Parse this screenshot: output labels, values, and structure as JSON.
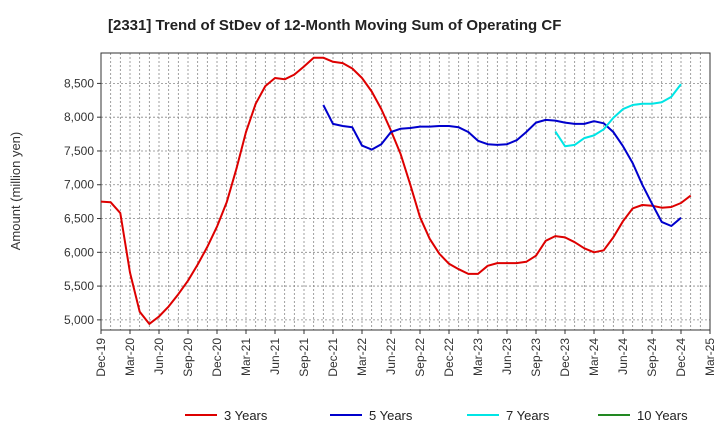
{
  "chart_data": {
    "type": "line",
    "title": "[2331]  Trend of StDev of 12-Month Moving Sum of Operating CF",
    "xlabel": "",
    "ylabel": "Amount (million yen)",
    "ylim": [
      4850,
      8950
    ],
    "yticks": [
      5000,
      5500,
      6000,
      6500,
      7000,
      7500,
      8000,
      8500
    ],
    "ytick_labels": [
      "5,000",
      "5,500",
      "6,000",
      "6,500",
      "7,000",
      "7,500",
      "8,000",
      "8,500"
    ],
    "xticks": [
      "Dec-19",
      "Mar-20",
      "Jun-20",
      "Sep-20",
      "Dec-20",
      "Mar-21",
      "Jun-21",
      "Sep-21",
      "Dec-21",
      "Mar-22",
      "Jun-22",
      "Sep-22",
      "Dec-22",
      "Mar-23",
      "Jun-23",
      "Sep-23",
      "Dec-23",
      "Mar-24",
      "Jun-24",
      "Sep-24",
      "Dec-24",
      "Mar-25"
    ],
    "grid": true,
    "legend_position": "bottom",
    "series": [
      {
        "name": "3 Years",
        "color": "#dd0000",
        "start": "Dec-19",
        "values": [
          6750,
          6740,
          6580,
          5700,
          5120,
          4940,
          5050,
          5200,
          5380,
          5580,
          5820,
          6080,
          6380,
          6740,
          7230,
          7780,
          8200,
          8460,
          8580,
          8560,
          8630,
          8750,
          8880,
          8880,
          8820,
          8800,
          8720,
          8580,
          8380,
          8120,
          7800,
          7450,
          7000,
          6520,
          6200,
          5980,
          5830,
          5750,
          5680,
          5680,
          5800,
          5840,
          5840,
          5840,
          5860,
          5950,
          6170,
          6240,
          6220,
          6150,
          6060,
          6000,
          6030,
          6220,
          6460,
          6650,
          6700,
          6690,
          6660,
          6670,
          6730,
          6840
        ]
      },
      {
        "name": "5 Years",
        "color": "#0000cc",
        "start": "Nov-21",
        "values": [
          8180,
          7900,
          7870,
          7850,
          7580,
          7520,
          7600,
          7780,
          7830,
          7840,
          7860,
          7860,
          7870,
          7870,
          7850,
          7780,
          7650,
          7600,
          7590,
          7600,
          7660,
          7780,
          7920,
          7960,
          7950,
          7920,
          7900,
          7900,
          7940,
          7910,
          7780,
          7570,
          7320,
          7000,
          6720,
          6450,
          6390,
          6510
        ]
      },
      {
        "name": "7 Years",
        "color": "#00e5e5",
        "start": "Nov-23",
        "values": [
          7790,
          7570,
          7590,
          7690,
          7730,
          7820,
          7990,
          8120,
          8180,
          8200,
          8200,
          8220,
          8300,
          8490
        ]
      },
      {
        "name": "10 Years",
        "color": "#228822",
        "start": "",
        "values": []
      }
    ]
  }
}
